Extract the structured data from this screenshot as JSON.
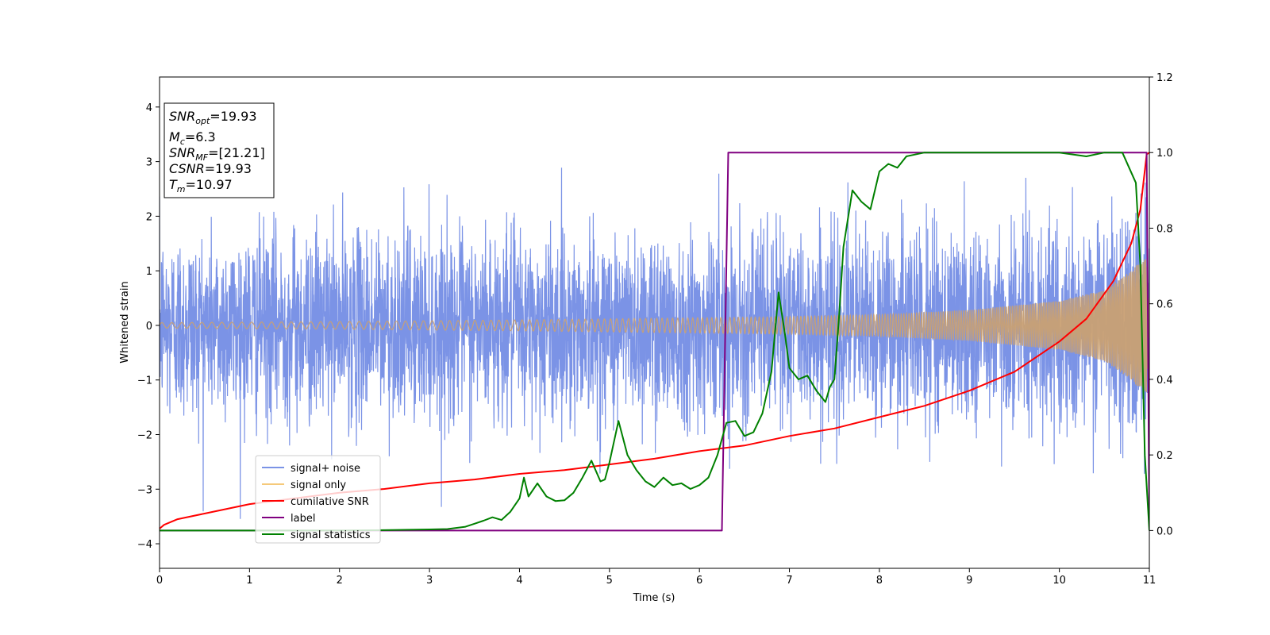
{
  "chart_data": {
    "type": "line",
    "xlabel": "Time (s)",
    "ylabel": "Whitened strain",
    "xlim": [
      0,
      11
    ],
    "ylim_left": [
      -4.45,
      4.55
    ],
    "ylim_right": [
      -0.1,
      1.2
    ],
    "xticks": [
      0,
      1,
      2,
      3,
      4,
      5,
      6,
      7,
      8,
      9,
      10,
      11
    ],
    "xtick_labels": [
      "0",
      "1",
      "2",
      "3",
      "4",
      "5",
      "6",
      "7",
      "8",
      "9",
      "10",
      "11"
    ],
    "yticks_left": [
      -4,
      -3,
      -2,
      -1,
      0,
      1,
      2,
      3,
      4
    ],
    "ytick_labels_left": [
      "−4",
      "−3",
      "−2",
      "−1",
      "0",
      "1",
      "2",
      "3",
      "4"
    ],
    "yticks_right": [
      0.0,
      0.2,
      0.4,
      0.6,
      0.8,
      1.0,
      1.2
    ],
    "ytick_labels_right": [
      "0.0",
      "0.2",
      "0.4",
      "0.6",
      "0.8",
      "1.0",
      "1.2"
    ],
    "grid": false,
    "legend_position": "lower-left",
    "series": [
      {
        "name": "signal+ noise",
        "axis": "left",
        "color": "#7b93e6",
        "description_values": {
          "noise_std": 0.85,
          "duration": 11
        }
      },
      {
        "name": "signal only",
        "axis": "left",
        "color": "#f5c97a",
        "envelope": {
          "t": [
            0,
            2,
            4,
            6,
            7,
            8,
            9,
            10,
            10.5,
            10.8,
            10.97,
            11
          ],
          "amp": [
            0.05,
            0.07,
            0.1,
            0.14,
            0.16,
            0.2,
            0.28,
            0.45,
            0.65,
            1.0,
            1.3,
            0.0
          ]
        }
      },
      {
        "name": "cumilative SNR",
        "axis": "right",
        "color": "#ff0000",
        "x": [
          0,
          0.05,
          0.2,
          0.5,
          1,
          1.5,
          2,
          2.5,
          3,
          3.5,
          4,
          4.5,
          5,
          5.5,
          6,
          6.5,
          7,
          7.5,
          8,
          8.5,
          9,
          9.5,
          10,
          10.3,
          10.6,
          10.8,
          10.9,
          10.97,
          11
        ],
        "y": [
          0.005,
          0.015,
          0.03,
          0.045,
          0.07,
          0.085,
          0.1,
          0.11,
          0.125,
          0.135,
          0.15,
          0.16,
          0.175,
          0.19,
          0.21,
          0.225,
          0.25,
          0.27,
          0.3,
          0.33,
          0.37,
          0.42,
          0.5,
          0.56,
          0.66,
          0.76,
          0.85,
          0.995,
          1.0
        ]
      },
      {
        "name": "label",
        "axis": "right",
        "color": "#800080",
        "x": [
          0,
          6.25,
          6.32,
          10.95,
          10.97,
          11
        ],
        "y": [
          0,
          0,
          1,
          1,
          1,
          0
        ]
      },
      {
        "name": "signal statistics",
        "axis": "right",
        "color": "#008000",
        "x": [
          0,
          1,
          2,
          2.5,
          3,
          3.2,
          3.4,
          3.5,
          3.6,
          3.7,
          3.8,
          3.9,
          4.0,
          4.05,
          4.1,
          4.2,
          4.3,
          4.4,
          4.5,
          4.6,
          4.7,
          4.8,
          4.9,
          4.95,
          5.0,
          5.1,
          5.2,
          5.3,
          5.4,
          5.5,
          5.6,
          5.7,
          5.8,
          5.9,
          6.0,
          6.1,
          6.2,
          6.3,
          6.4,
          6.5,
          6.6,
          6.7,
          6.8,
          6.88,
          6.95,
          7.0,
          7.1,
          7.2,
          7.3,
          7.4,
          7.45,
          7.5,
          7.55,
          7.6,
          7.7,
          7.8,
          7.9,
          8.0,
          8.1,
          8.2,
          8.3,
          8.5,
          8.7,
          9.0,
          9.5,
          10.0,
          10.3,
          10.5,
          10.7,
          10.85,
          10.9,
          10.95,
          11.0
        ],
        "y": [
          0,
          0,
          0,
          0.001,
          0.003,
          0.004,
          0.01,
          0.018,
          0.026,
          0.035,
          0.028,
          0.05,
          0.085,
          0.14,
          0.09,
          0.125,
          0.09,
          0.078,
          0.08,
          0.1,
          0.14,
          0.185,
          0.13,
          0.135,
          0.18,
          0.29,
          0.2,
          0.16,
          0.13,
          0.115,
          0.14,
          0.12,
          0.125,
          0.11,
          0.12,
          0.14,
          0.2,
          0.285,
          0.29,
          0.25,
          0.26,
          0.31,
          0.42,
          0.63,
          0.52,
          0.43,
          0.4,
          0.41,
          0.37,
          0.34,
          0.38,
          0.4,
          0.56,
          0.75,
          0.9,
          0.87,
          0.85,
          0.95,
          0.97,
          0.96,
          0.99,
          1.0,
          1.0,
          1.0,
          1.0,
          1.0,
          0.99,
          1.0,
          1.0,
          0.92,
          0.7,
          0.2,
          0.0
        ]
      }
    ],
    "annotation": {
      "lines": [
        {
          "sym": "SNR",
          "sub": "opt",
          "rest": "=19.93"
        },
        {
          "sym": "M",
          "sub": "c",
          "rest": "=6.3"
        },
        {
          "sym": "SNR",
          "sub": "MF",
          "rest": "=[21.21]"
        },
        {
          "sym": "CSNR",
          "sub": "",
          "rest": "=19.93"
        },
        {
          "sym": "T",
          "sub": "m",
          "rest": "=10.97"
        }
      ]
    }
  }
}
